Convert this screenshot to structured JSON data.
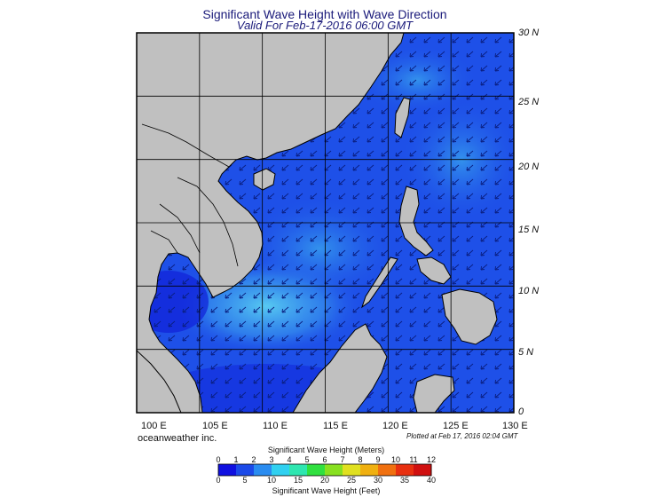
{
  "header": {
    "title": "Significant Wave Height with Wave Direction",
    "subtitle": "Valid For Feb-17-2016 06:00 GMT"
  },
  "map": {
    "region": "South China Sea",
    "lon_range": [
      100,
      130
    ],
    "lat_range": [
      0,
      30
    ],
    "lat_labels": [
      "30 N",
      "25 N",
      "20 N",
      "15 N",
      "10 N",
      "5 N",
      "0"
    ],
    "lon_labels": [
      "100 E",
      "105 E",
      "110 E",
      "115 E",
      "120 E",
      "125 E",
      "130 E"
    ],
    "land_color": "#c0c0c0",
    "sea_color_base": "#1e50e8",
    "sea_color_high": "#3fb8f0",
    "arrow_color": "#0a1e80",
    "wave_direction": "from northeast toward southwest"
  },
  "footer": {
    "credit": "oceanweather inc.",
    "plotted": "Plotted at Feb 17, 2016 02:04 GMT"
  },
  "colorbar": {
    "title_meters": "Significant Wave Height (Meters)",
    "title_feet": "Significant Wave Height (Feet)",
    "meters_ticks": [
      "0",
      "1",
      "2",
      "3",
      "4",
      "5",
      "6",
      "7",
      "8",
      "9",
      "10",
      "11",
      "12"
    ],
    "feet_ticks": [
      "0",
      "5",
      "10",
      "15",
      "20",
      "25",
      "30",
      "35",
      "40"
    ],
    "colors": [
      "#1010e0",
      "#1c4ae8",
      "#2a8cf0",
      "#30d0f0",
      "#2ee6b0",
      "#30e040",
      "#88e020",
      "#e0e020",
      "#f0b010",
      "#f07010",
      "#e83010",
      "#d01010"
    ]
  }
}
